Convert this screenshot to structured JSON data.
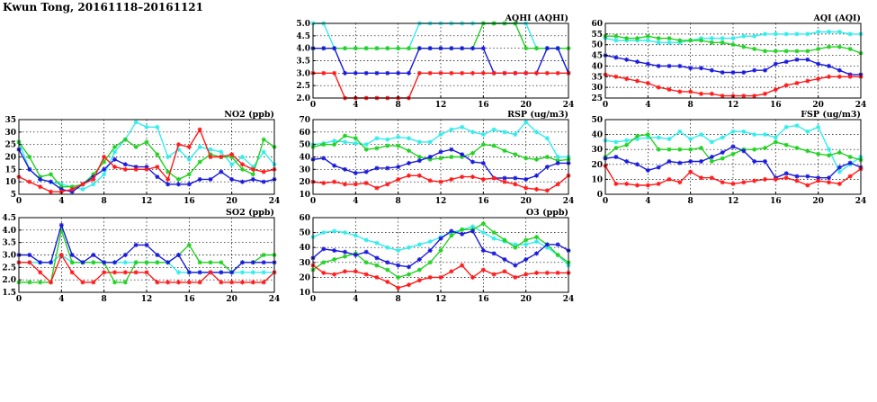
{
  "page_title": "Kwun Tong, 20161118–20161121",
  "series_colors": {
    "red": "#ff1a1a",
    "blue": "#1a1adb",
    "green": "#22d122",
    "cyan": "#33ecec"
  },
  "chart_data": [
    {
      "id": "aqhi",
      "type": "line",
      "title": "AQHI (AQHI)",
      "ylim": [
        2.0,
        5.0
      ],
      "yticks": [
        "2.0",
        "2.5",
        "3.0",
        "3.5",
        "4.0",
        "4.5",
        "5.0"
      ],
      "xlim": [
        0,
        24
      ],
      "xticks": [
        "0",
        "4",
        "8",
        "12",
        "16",
        "20",
        "24"
      ],
      "series": [
        {
          "color": "cyan",
          "values": [
            5,
            5,
            4,
            4,
            4,
            4,
            4,
            4,
            4,
            4,
            5,
            5,
            5,
            5,
            5,
            5,
            5,
            5,
            5,
            5,
            5,
            4,
            4,
            4,
            3
          ]
        },
        {
          "color": "green",
          "values": [
            4,
            4,
            4,
            4,
            4,
            4,
            4,
            4,
            4,
            4,
            4,
            4,
            4,
            4,
            4,
            4,
            5,
            5,
            5,
            5,
            4,
            4,
            4,
            4,
            4
          ]
        },
        {
          "color": "blue",
          "values": [
            4,
            4,
            4,
            3,
            3,
            3,
            3,
            3,
            3,
            3,
            4,
            4,
            4,
            4,
            4,
            4,
            4,
            3,
            3,
            3,
            3,
            3,
            4,
            4,
            3
          ]
        },
        {
          "color": "red",
          "values": [
            3,
            3,
            3,
            2,
            2,
            2,
            2,
            2,
            2,
            2,
            3,
            3,
            3,
            3,
            3,
            3,
            3,
            3,
            3,
            3,
            3,
            3,
            3,
            3,
            3
          ]
        }
      ]
    },
    {
      "id": "aqi",
      "type": "line",
      "title": "AQI (AQI)",
      "ylim": [
        25,
        60
      ],
      "yticks": [
        "25",
        "30",
        "35",
        "40",
        "45",
        "50",
        "55",
        "60"
      ],
      "xlim": [
        0,
        24
      ],
      "xticks": [
        "0",
        "4",
        "8",
        "12",
        "16",
        "20",
        "24"
      ],
      "series": [
        {
          "color": "cyan",
          "values": [
            53,
            52,
            52,
            52,
            52,
            51,
            51,
            51,
            52,
            53,
            53,
            53,
            53,
            54,
            54,
            55,
            55,
            55,
            55,
            55,
            56,
            56,
            56,
            55,
            55
          ]
        },
        {
          "color": "green",
          "values": [
            54,
            54,
            53,
            53,
            54,
            53,
            53,
            52,
            52,
            52,
            51,
            51,
            50,
            49,
            48,
            47,
            47,
            47,
            47,
            47,
            48,
            49,
            49,
            48,
            46
          ]
        },
        {
          "color": "blue",
          "values": [
            45,
            44,
            43,
            42,
            41,
            40,
            40,
            40,
            39,
            39,
            38,
            37,
            37,
            37,
            38,
            38,
            41,
            42,
            43,
            43,
            41,
            40,
            38,
            36,
            36
          ]
        },
        {
          "color": "red",
          "values": [
            36,
            35,
            34,
            33,
            32,
            30,
            29,
            28,
            28,
            27,
            27,
            26,
            26,
            26,
            26,
            27,
            29,
            31,
            32,
            33,
            34,
            35,
            35,
            35,
            35
          ]
        }
      ]
    },
    {
      "id": "no2",
      "type": "line",
      "title": "NO2 (ppb)",
      "ylim": [
        5,
        35
      ],
      "yticks": [
        "5",
        "10",
        "15",
        "20",
        "25",
        "30",
        "35"
      ],
      "xlim": [
        0,
        24
      ],
      "xticks": [
        "0",
        "4",
        "8",
        "12",
        "16",
        "20",
        "24"
      ],
      "series": [
        {
          "color": "cyan",
          "values": [
            26,
            15,
            11,
            10,
            9,
            8,
            7,
            9,
            13,
            22,
            27,
            34,
            32,
            32,
            20,
            23,
            19,
            24,
            23,
            22,
            17,
            20,
            16,
            22,
            17
          ]
        },
        {
          "color": "green",
          "values": [
            26,
            20,
            12,
            13,
            8,
            8,
            9,
            13,
            18,
            24,
            27,
            24,
            26,
            21,
            14,
            11,
            13,
            18,
            21,
            20,
            20,
            15,
            13,
            27,
            24
          ]
        },
        {
          "color": "blue",
          "values": [
            23,
            15,
            11,
            10,
            7,
            6,
            9,
            12,
            15,
            19,
            17,
            16,
            16,
            12,
            9,
            9,
            9,
            11,
            11,
            14,
            11,
            10,
            11,
            10,
            11
          ]
        },
        {
          "color": "red",
          "values": [
            12,
            10,
            8,
            6,
            6,
            7,
            9,
            11,
            20,
            16,
            15,
            15,
            15,
            16,
            11,
            25,
            24,
            31,
            20,
            20,
            21,
            17,
            15,
            14,
            15
          ]
        }
      ]
    },
    {
      "id": "rsp",
      "type": "line",
      "title": "RSP (ug/m3)",
      "ylim": [
        10,
        70
      ],
      "yticks": [
        "10",
        "20",
        "30",
        "40",
        "50",
        "60",
        "70"
      ],
      "xlim": [
        0,
        24
      ],
      "xticks": [
        "0",
        "4",
        "8",
        "12",
        "16",
        "20",
        "24"
      ],
      "series": [
        {
          "color": "cyan",
          "values": [
            50,
            51,
            53,
            52,
            51,
            50,
            55,
            54,
            56,
            55,
            52,
            52,
            58,
            62,
            64,
            60,
            58,
            62,
            60,
            58,
            68,
            60,
            55,
            40,
            40
          ]
        },
        {
          "color": "green",
          "values": [
            48,
            50,
            50,
            57,
            55,
            46,
            47,
            49,
            49,
            45,
            40,
            38,
            39,
            40,
            40,
            43,
            50,
            49,
            45,
            42,
            39,
            38,
            40,
            37,
            38
          ]
        },
        {
          "color": "blue",
          "values": [
            38,
            39,
            33,
            30,
            27,
            28,
            31,
            31,
            32,
            35,
            37,
            40,
            44,
            46,
            42,
            36,
            35,
            23,
            23,
            23,
            22,
            25,
            32,
            35,
            35
          ]
        },
        {
          "color": "red",
          "values": [
            20,
            19,
            20,
            18,
            18,
            19,
            15,
            18,
            22,
            25,
            25,
            21,
            20,
            22,
            24,
            24,
            22,
            23,
            20,
            18,
            15,
            14,
            13,
            18,
            25
          ]
        }
      ]
    },
    {
      "id": "fsp",
      "type": "line",
      "title": "FSP (ug/m3)",
      "ylim": [
        0,
        50
      ],
      "yticks": [
        "0",
        "10",
        "20",
        "30",
        "40",
        "50"
      ],
      "xlim": [
        0,
        24
      ],
      "xticks": [
        "0",
        "4",
        "8",
        "12",
        "16",
        "20",
        "24"
      ],
      "series": [
        {
          "color": "cyan",
          "values": [
            36,
            35,
            36,
            37,
            38,
            38,
            37,
            42,
            37,
            40,
            35,
            38,
            42,
            42,
            40,
            40,
            38,
            45,
            46,
            42,
            45,
            30,
            15,
            20,
            25
          ]
        },
        {
          "color": "green",
          "values": [
            25,
            31,
            33,
            39,
            40,
            30,
            30,
            30,
            30,
            31,
            22,
            24,
            27,
            30,
            30,
            31,
            35,
            33,
            31,
            29,
            27,
            26,
            28,
            25,
            23
          ]
        },
        {
          "color": "blue",
          "values": [
            24,
            25,
            22,
            20,
            16,
            18,
            22,
            21,
            22,
            22,
            25,
            28,
            32,
            29,
            22,
            22,
            11,
            14,
            12,
            12,
            11,
            11,
            18,
            21,
            18
          ]
        },
        {
          "color": "red",
          "values": [
            19,
            7,
            7,
            6,
            6,
            7,
            10,
            8,
            15,
            11,
            11,
            8,
            7,
            8,
            9,
            10,
            10,
            11,
            9,
            6,
            9,
            8,
            7,
            12,
            17
          ]
        }
      ]
    },
    {
      "id": "so2",
      "type": "line",
      "title": "SO2 (ppb)",
      "ylim": [
        1.5,
        4.5
      ],
      "yticks": [
        "1.5",
        "2.0",
        "2.5",
        "3.0",
        "3.5",
        "4.0",
        "4.5"
      ],
      "xlim": [
        0,
        24
      ],
      "xticks": [
        "0",
        "4",
        "8",
        "12",
        "16",
        "20",
        "24"
      ],
      "series": [
        {
          "color": "cyan",
          "values": [
            2.7,
            2.7,
            2.7,
            2.7,
            3.0,
            2.7,
            2.7,
            2.7,
            2.7,
            2.7,
            2.7,
            2.7,
            2.7,
            2.7,
            2.7,
            2.3,
            2.3,
            2.3,
            2.3,
            2.3,
            2.3,
            2.3,
            2.3,
            2.3,
            2.3
          ]
        },
        {
          "color": "green",
          "values": [
            1.9,
            1.9,
            1.9,
            1.9,
            4.0,
            2.7,
            2.7,
            2.7,
            2.7,
            1.9,
            1.9,
            2.7,
            2.7,
            2.7,
            2.7,
            3.0,
            3.4,
            2.7,
            2.7,
            2.7,
            2.3,
            2.7,
            2.7,
            3.0,
            3.0
          ]
        },
        {
          "color": "blue",
          "values": [
            3.0,
            3.0,
            2.7,
            2.7,
            4.2,
            3.0,
            2.7,
            3.0,
            2.7,
            2.7,
            3.0,
            3.4,
            3.4,
            3.0,
            2.7,
            3.0,
            2.3,
            2.3,
            2.3,
            2.3,
            2.3,
            2.7,
            2.7,
            2.7,
            2.7
          ]
        },
        {
          "color": "red",
          "values": [
            2.7,
            2.7,
            2.3,
            1.9,
            3.0,
            2.3,
            1.9,
            1.9,
            2.3,
            2.3,
            2.3,
            2.3,
            2.3,
            1.9,
            1.9,
            1.9,
            1.9,
            1.9,
            2.3,
            1.9,
            1.9,
            1.9,
            1.9,
            1.9,
            2.3
          ]
        }
      ]
    },
    {
      "id": "o3",
      "type": "line",
      "title": "O3 (ppb)",
      "ylim": [
        10,
        60
      ],
      "yticks": [
        "10",
        "20",
        "30",
        "40",
        "50",
        "60"
      ],
      "xlim": [
        0,
        24
      ],
      "xticks": [
        "0",
        "4",
        "8",
        "12",
        "16",
        "20",
        "24"
      ],
      "series": [
        {
          "color": "cyan",
          "values": [
            47,
            50,
            51,
            50,
            48,
            45,
            43,
            40,
            38,
            40,
            42,
            44,
            47,
            50,
            52,
            54,
            50,
            46,
            44,
            42,
            42,
            44,
            40,
            35,
            28
          ]
        },
        {
          "color": "green",
          "values": [
            25,
            30,
            32,
            34,
            36,
            30,
            28,
            25,
            20,
            22,
            25,
            30,
            38,
            48,
            52,
            52,
            56,
            50,
            45,
            40,
            45,
            47,
            42,
            35,
            30
          ]
        },
        {
          "color": "blue",
          "values": [
            33,
            39,
            38,
            37,
            35,
            37,
            33,
            30,
            28,
            27,
            32,
            38,
            46,
            51,
            49,
            51,
            38,
            36,
            32,
            28,
            32,
            36,
            42,
            42,
            38
          ]
        },
        {
          "color": "red",
          "values": [
            28,
            23,
            22,
            24,
            24,
            22,
            20,
            17,
            13,
            15,
            18,
            20,
            20,
            24,
            28,
            20,
            25,
            22,
            24,
            20,
            22,
            23,
            23,
            23,
            23
          ]
        }
      ]
    }
  ]
}
